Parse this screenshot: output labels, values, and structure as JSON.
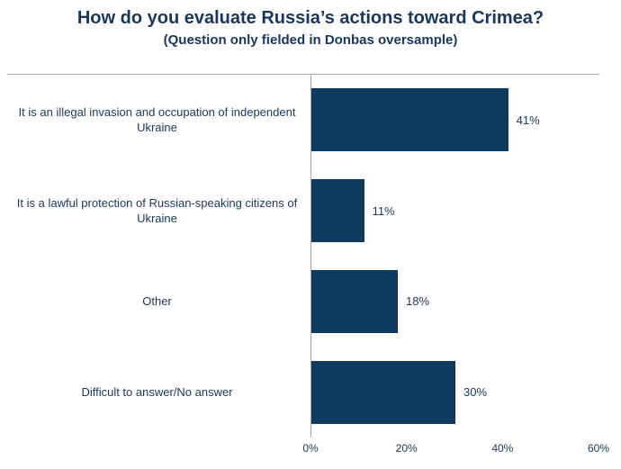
{
  "chart_data": {
    "type": "bar",
    "orientation": "horizontal",
    "title": "How do you evaluate Russia’s actions toward Crimea?",
    "subtitle": "(Question only fielded in Donbas oversample)",
    "categories": [
      "It is an illegal invasion and occupation of independent Ukraine",
      "It is a lawful protection of Russian-speaking citizens of Ukraine",
      "Other",
      "Difficult to answer/No answer"
    ],
    "values": [
      41,
      11,
      18,
      30
    ],
    "value_labels": [
      "41%",
      "11%",
      "18%",
      "30%"
    ],
    "xlim": [
      0,
      60
    ],
    "x_tick_values": [
      0,
      20,
      40,
      60
    ],
    "x_tick_labels": [
      "0%",
      "20%",
      "40%",
      "60%"
    ],
    "grid": "off",
    "legend": "none",
    "colors": {
      "bar": "#0E3A5D",
      "text": "#17375E",
      "axis_line": "#A6A6A6",
      "background": "#FFFFFF"
    }
  }
}
